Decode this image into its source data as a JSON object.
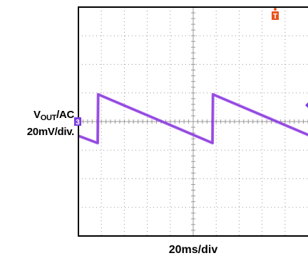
{
  "chart_data": {
    "type": "line",
    "title": "",
    "ylabel_main": "V",
    "ylabel_sub": "OUT",
    "ylabel_rest": "/AC",
    "ylabel_scale": "20mV/div.",
    "xlabel": "20ms/div",
    "x_divisions": 10,
    "y_divisions": 8,
    "grid": true,
    "channel_marker": "3",
    "trigger_marker": "T",
    "colors": {
      "trace": "#9b4fe8",
      "channel": "#7b3fe0",
      "trigger": "#e8531e",
      "grid": "#9a9a9a",
      "frame": "#000000"
    },
    "series": [
      {
        "x": [
          0.0,
          0.84,
          0.86,
          5.84,
          5.86,
          10.84,
          10.86,
          12.0
        ],
        "y": [
          -0.5,
          -0.75,
          0.95,
          -0.75,
          0.95,
          -0.75,
          0.95,
          0.6
        ]
      }
    ]
  }
}
